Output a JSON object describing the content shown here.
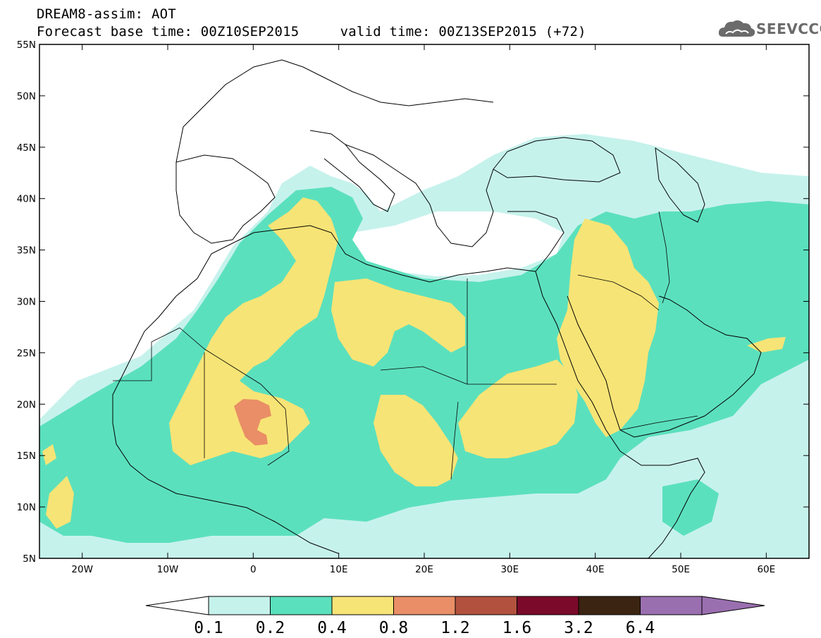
{
  "header": {
    "product_title": "DREAM8-assim: AOT",
    "base_time_label": "Forecast base time: 00Z10SEP2015",
    "valid_time_label": "valid time: 00Z13SEP2015 (+72)"
  },
  "logo": {
    "text": "SEEVCCC",
    "icon": "cloud-icon"
  },
  "map": {
    "region": "North Africa, Mediterranean and Middle East",
    "lat_range": [
      5,
      55
    ],
    "lon_range": [
      -25,
      65
    ],
    "lat_ticks": [
      "55N",
      "50N",
      "45N",
      "40N",
      "35N",
      "30N",
      "25N",
      "20N",
      "15N",
      "10N",
      "5N"
    ],
    "lon_ticks": [
      "20W",
      "10W",
      "0",
      "10E",
      "20E",
      "30E",
      "40E",
      "50E",
      "60E"
    ],
    "variable": "AOT"
  },
  "legend": {
    "labels": [
      "0.1",
      "0.2",
      "0.4",
      "0.8",
      "1.2",
      "1.6",
      "3.2",
      "6.4"
    ],
    "colors": [
      "#ffffff",
      "#c6f2ec",
      "#5be0bd",
      "#f7e476",
      "#e98e66",
      "#b2523e",
      "#7b0a2a",
      "#3b2412",
      "#9a6fb0"
    ]
  }
}
